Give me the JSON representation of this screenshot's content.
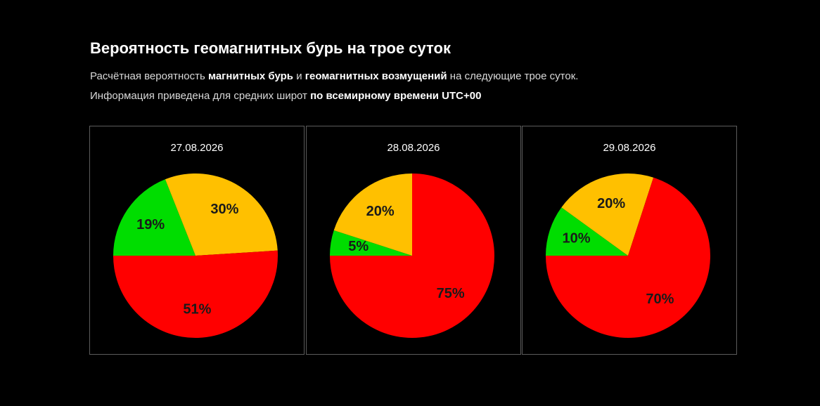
{
  "header": {
    "title": "Вероятность геомагнитных бурь на трое суток",
    "line1": {
      "t1": "Расчётная вероятность ",
      "b1": "магнитных бурь",
      "t2": " и ",
      "b2": "геомагнитных возмущений",
      "t3": " на следующие трое суток."
    },
    "line2": {
      "t1": "Информация приведена для средних широт ",
      "b1": "по всемирному времени UTC+00"
    }
  },
  "colors": {
    "background": "#000000",
    "green": "#00dd00",
    "yellow": "#ffc000",
    "red": "#ff0000",
    "label": "#1a1a1a"
  },
  "chart_data": [
    {
      "type": "pie",
      "title": "27.08.2026",
      "slices": [
        {
          "label": "19%",
          "value": 19,
          "color": "#00dd00"
        },
        {
          "label": "30%",
          "value": 30,
          "color": "#ffc000"
        },
        {
          "label": "51%",
          "value": 51,
          "color": "#ff0000"
        }
      ]
    },
    {
      "type": "pie",
      "title": "28.08.2026",
      "slices": [
        {
          "label": "5%",
          "value": 5,
          "color": "#00dd00"
        },
        {
          "label": "20%",
          "value": 20,
          "color": "#ffc000"
        },
        {
          "label": "75%",
          "value": 75,
          "color": "#ff0000"
        }
      ]
    },
    {
      "type": "pie",
      "title": "29.08.2026",
      "slices": [
        {
          "label": "10%",
          "value": 10,
          "color": "#00dd00"
        },
        {
          "label": "20%",
          "value": 20,
          "color": "#ffc000"
        },
        {
          "label": "70%",
          "value": 70,
          "color": "#ff0000"
        }
      ]
    }
  ]
}
